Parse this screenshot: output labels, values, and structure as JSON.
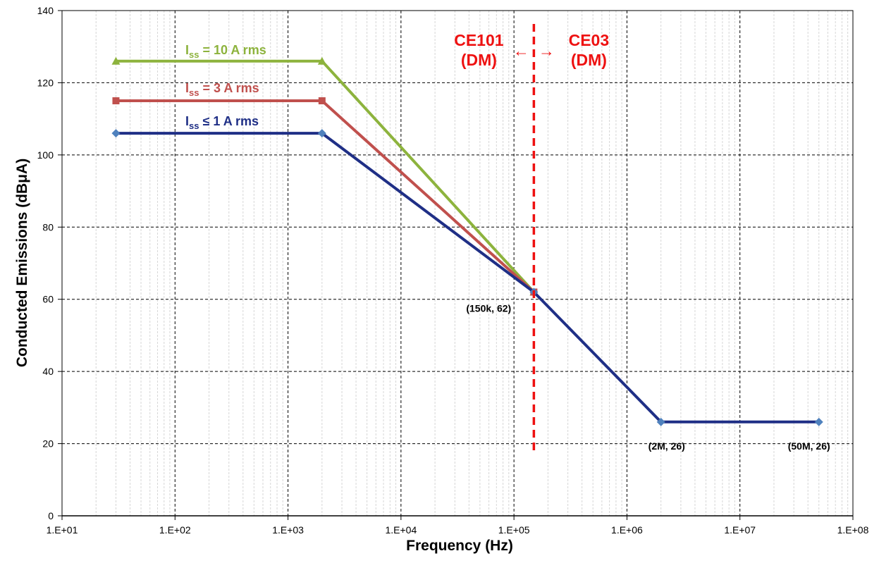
{
  "chart_data": {
    "type": "line",
    "title": "",
    "xlabel": "Frequency (Hz)",
    "ylabel": "Conducted Emissions (dBμA)",
    "xscale": "log",
    "xlim": [
      10,
      100000000
    ],
    "ylim": [
      0,
      140
    ],
    "xticks": [
      10,
      100,
      1000,
      10000,
      100000,
      1000000,
      10000000,
      100000000
    ],
    "xtick_labels": [
      "1.E+01",
      "1.E+02",
      "1.E+03",
      "1.E+04",
      "1.E+05",
      "1.E+06",
      "1.E+07",
      "1.E+08"
    ],
    "yticks": [
      0,
      20,
      40,
      60,
      80,
      100,
      120,
      140
    ],
    "ytick_labels": [
      "0",
      "20",
      "40",
      "60",
      "80",
      "100",
      "120",
      "140"
    ],
    "grid": true,
    "legend": "none",
    "series": [
      {
        "name": "Iss = 10 A rms",
        "label_main": "I",
        "label_sub": "ss",
        "label_rest": " = 10 A rms",
        "color": "#8db33d",
        "marker": "triangle",
        "x": [
          30,
          2000,
          150000
        ],
        "y": [
          126,
          126,
          62
        ]
      },
      {
        "name": "Iss = 3 A rms",
        "label_main": "I",
        "label_sub": "ss",
        "label_rest": " = 3 A rms",
        "color": "#c0504d",
        "marker": "square",
        "x": [
          30,
          2000,
          150000
        ],
        "y": [
          115,
          115,
          62
        ]
      },
      {
        "name": "Iss ≤ 1 A rms",
        "label_main": "I",
        "label_sub": "ss",
        "label_rest": " ≤ 1 A rms",
        "color": "#1f2f86",
        "marker_color": "#4f81bd",
        "marker": "diamond",
        "x": [
          30,
          2000,
          150000,
          2000000,
          50000000
        ],
        "y": [
          106,
          106,
          62,
          26,
          26
        ]
      }
    ],
    "boundary": {
      "x": 150000,
      "color": "#ee1111",
      "left_label": [
        "CE101",
        "(DM)"
      ],
      "right_label": [
        "CE03",
        "(DM)"
      ],
      "left_arrow": "←",
      "right_arrow": "→"
    },
    "annotations": [
      {
        "text": "(150k, 62)",
        "x": 150000,
        "y": 62
      },
      {
        "text": "(2M, 26)",
        "x": 2000000,
        "y": 26
      },
      {
        "text": "(50M, 26)",
        "x": 50000000,
        "y": 26
      }
    ]
  }
}
